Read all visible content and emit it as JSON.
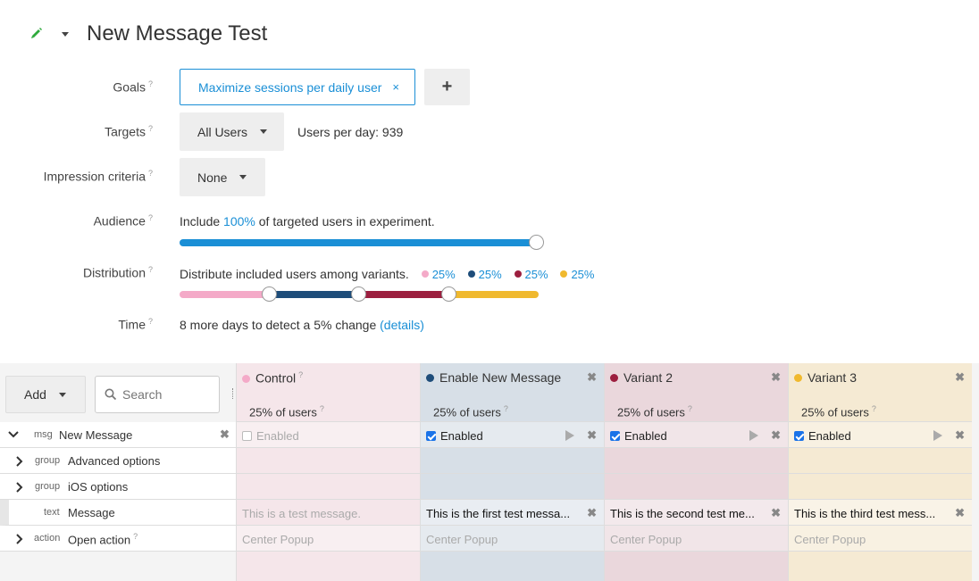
{
  "header": {
    "title": "New Message Test",
    "edit_icon": "pencil-icon",
    "menu_icon": "caret-down-icon"
  },
  "labels": {
    "goals": "Goals",
    "targets": "Targets",
    "impression": "Impression criteria",
    "audience": "Audience",
    "distribution": "Distribution",
    "time": "Time",
    "help": "?"
  },
  "goals": {
    "selected": "Maximize sessions per daily user",
    "remove": "×",
    "add": "+"
  },
  "targets": {
    "selected": "All Users",
    "users_per_day": "Users per day: 939"
  },
  "impression": {
    "selected": "None"
  },
  "audience": {
    "prefix": "Include",
    "percent": "100%",
    "suffix": "of targeted users in experiment.",
    "level": 1.0,
    "color": "#1a8fd6"
  },
  "distribution": {
    "text": "Distribute included users among variants.",
    "segments": [
      {
        "percent": "25%",
        "color": "#f4aac8",
        "share": 0.25
      },
      {
        "percent": "25%",
        "color": "#1e4d7a",
        "share": 0.25
      },
      {
        "percent": "25%",
        "color": "#9c1f3f",
        "share": 0.25
      },
      {
        "percent": "25%",
        "color": "#f0b92e",
        "share": 0.25
      }
    ]
  },
  "time": {
    "text": "8 more days to detect a 5% change",
    "link": "(details)"
  },
  "toolbar": {
    "add_label": "Add",
    "search_placeholder": "Search"
  },
  "variants": [
    {
      "name": "Control",
      "pct": "25% of users",
      "color": "#f4aac8",
      "bg": "#f5e6ea",
      "checkbox": "Enabled",
      "enabled": false,
      "message": "This is a test message.",
      "action": "Center Popup",
      "removable": false
    },
    {
      "name": "Enable New Message",
      "pct": "25% of users",
      "color": "#1e4d7a",
      "bg": "#d7dfe7",
      "checkbox": "Enabled",
      "enabled": true,
      "message": "This is the first test messa...",
      "action": "Center Popup",
      "removable": true
    },
    {
      "name": "Variant 2",
      "pct": "25% of users",
      "color": "#9c1f3f",
      "bg": "#ead7dc",
      "checkbox": "Enabled",
      "enabled": true,
      "message": "This is the second test me...",
      "action": "Center Popup",
      "removable": true
    },
    {
      "name": "Variant 3",
      "pct": "25% of users",
      "color": "#f0b92e",
      "bg": "#f5ead3",
      "checkbox": "Enabled",
      "enabled": true,
      "message": "This is the third test mess...",
      "action": "Center Popup",
      "removable": true
    }
  ],
  "rows": [
    {
      "kind": "msg",
      "name": "New Message",
      "expand": "chevron-down"
    },
    {
      "kind": "group",
      "name": "Advanced options",
      "expand": "chevron-right"
    },
    {
      "kind": "group",
      "name": "iOS options",
      "expand": "chevron-right"
    },
    {
      "kind": "text",
      "name": "Message",
      "expand": ""
    },
    {
      "kind": "action",
      "name": "Open action",
      "expand": "chevron-right"
    }
  ]
}
